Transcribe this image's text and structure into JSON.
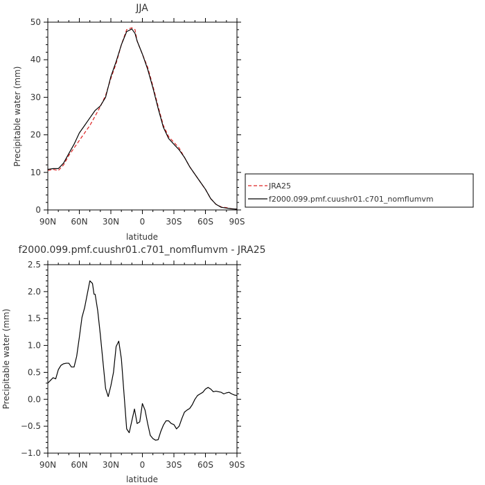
{
  "chart_data": [
    {
      "type": "line",
      "title": "JJA",
      "xlabel": "latitude",
      "ylabel": "Precipitable water (mm)",
      "xlim": [
        90,
        -90
      ],
      "ylim": [
        0,
        50
      ],
      "x_ticks": [
        90,
        60,
        30,
        0,
        -30,
        -60,
        -90
      ],
      "x_tick_labels": [
        "90N",
        "60N",
        "30N",
        "0",
        "30S",
        "60S",
        "90S"
      ],
      "y_ticks": [
        0,
        10,
        20,
        30,
        40,
        50
      ],
      "y_tick_labels": [
        "0",
        "10",
        "20",
        "30",
        "40",
        "50"
      ],
      "legend_position": "right",
      "series": [
        {
          "name": "JRA25",
          "color": "#dd2222",
          "dash": "dashed",
          "x": [
            90,
            85,
            80,
            75,
            70,
            65,
            60,
            55,
            50,
            45,
            40,
            35,
            30,
            25,
            20,
            15,
            10,
            7,
            5,
            0,
            -5,
            -10,
            -15,
            -20,
            -25,
            -30,
            -35,
            -40,
            -45,
            -50,
            -55,
            -60,
            -65,
            -70,
            -75,
            -80,
            -85,
            -90
          ],
          "values": [
            10.5,
            10.8,
            10.5,
            12,
            14.5,
            16.5,
            18.5,
            20.5,
            22.5,
            25,
            27.5,
            30.5,
            35,
            39,
            44,
            48,
            48.5,
            48,
            45,
            41.5,
            38,
            33,
            27.5,
            22.5,
            19.5,
            18,
            16.5,
            14,
            11.5,
            9.5,
            7.5,
            5.5,
            3,
            1.5,
            0.8,
            0.6,
            0.3,
            0.2
          ]
        },
        {
          "name": "f2000.099.pmf.cuushr01.c701_nomflumvm",
          "color": "#000000",
          "dash": "solid",
          "x": [
            90,
            85,
            80,
            75,
            70,
            65,
            60,
            55,
            50,
            45,
            40,
            35,
            30,
            25,
            20,
            15,
            10,
            7,
            5,
            0,
            -5,
            -10,
            -15,
            -20,
            -25,
            -30,
            -35,
            -40,
            -45,
            -50,
            -55,
            -60,
            -65,
            -70,
            -75,
            -80,
            -85,
            -90
          ],
          "values": [
            10.8,
            11,
            11,
            12.5,
            15,
            17.5,
            20.5,
            22.5,
            24.5,
            26.5,
            27.7,
            30,
            35.5,
            39.5,
            44,
            47.5,
            48.2,
            47,
            45,
            41.5,
            37.5,
            32.5,
            27,
            22,
            19,
            17.5,
            16,
            14,
            11.5,
            9.5,
            7.5,
            5.5,
            3,
            1.5,
            0.7,
            0.5,
            0.3,
            0.2
          ]
        }
      ]
    },
    {
      "type": "line",
      "title": "f2000.099.pmf.cuushr01.c701_nomflumvm - JRA25",
      "xlabel": "latitude",
      "ylabel": "Precipitable water (mm)",
      "xlim": [
        90,
        -90
      ],
      "ylim": [
        -1.0,
        2.5
      ],
      "x_ticks": [
        90,
        60,
        30,
        0,
        -30,
        -60,
        -90
      ],
      "x_tick_labels": [
        "90N",
        "60N",
        "30N",
        "0",
        "30S",
        "60S",
        "90S"
      ],
      "y_ticks": [
        -1.0,
        -0.5,
        0.0,
        0.5,
        1.0,
        1.5,
        2.0,
        2.5
      ],
      "y_tick_labels": [
        "−1.0",
        "−0.5",
        "0.0",
        "0.5",
        "1.0",
        "1.5",
        "2.0",
        "2.5"
      ],
      "series": [
        {
          "color": "#000000",
          "dash": "solid",
          "x": [
            90,
            87.5,
            85,
            82.5,
            80,
            77.5,
            75,
            72.5,
            70,
            67.5,
            65,
            62.5,
            60,
            57.5,
            55,
            52.5,
            50,
            47.5,
            46,
            45,
            42.5,
            40,
            37.5,
            35,
            32.5,
            30,
            27.5,
            25,
            22.5,
            20,
            17.5,
            15,
            12.5,
            10,
            7.5,
            5,
            2.5,
            0,
            -2.5,
            -5,
            -7.5,
            -10,
            -12.5,
            -15,
            -17.5,
            -20,
            -22.5,
            -25,
            -27.5,
            -30,
            -32.5,
            -35,
            -37.5,
            -40,
            -42.5,
            -45,
            -47.5,
            -50,
            -52.5,
            -55,
            -57.5,
            -60,
            -62.5,
            -65,
            -67.5,
            -70,
            -72.5,
            -75,
            -77.5,
            -80,
            -82.5,
            -85,
            -87.5,
            -90
          ],
          "values": [
            0.3,
            0.35,
            0.4,
            0.38,
            0.55,
            0.63,
            0.66,
            0.67,
            0.67,
            0.6,
            0.6,
            0.8,
            1.15,
            1.52,
            1.7,
            1.95,
            2.2,
            2.15,
            1.95,
            1.95,
            1.65,
            1.2,
            0.7,
            0.2,
            0.05,
            0.25,
            0.5,
            0.98,
            1.08,
            0.75,
            0.1,
            -0.55,
            -0.62,
            -0.4,
            -0.18,
            -0.45,
            -0.42,
            -0.08,
            -0.2,
            -0.45,
            -0.67,
            -0.73,
            -0.76,
            -0.75,
            -0.6,
            -0.48,
            -0.4,
            -0.4,
            -0.45,
            -0.47,
            -0.55,
            -0.5,
            -0.36,
            -0.24,
            -0.2,
            -0.17,
            -0.1,
            0.0,
            0.07,
            0.1,
            0.13,
            0.19,
            0.22,
            0.19,
            0.14,
            0.15,
            0.14,
            0.13,
            0.1,
            0.12,
            0.13,
            0.1,
            0.08,
            0.07
          ]
        }
      ]
    }
  ]
}
